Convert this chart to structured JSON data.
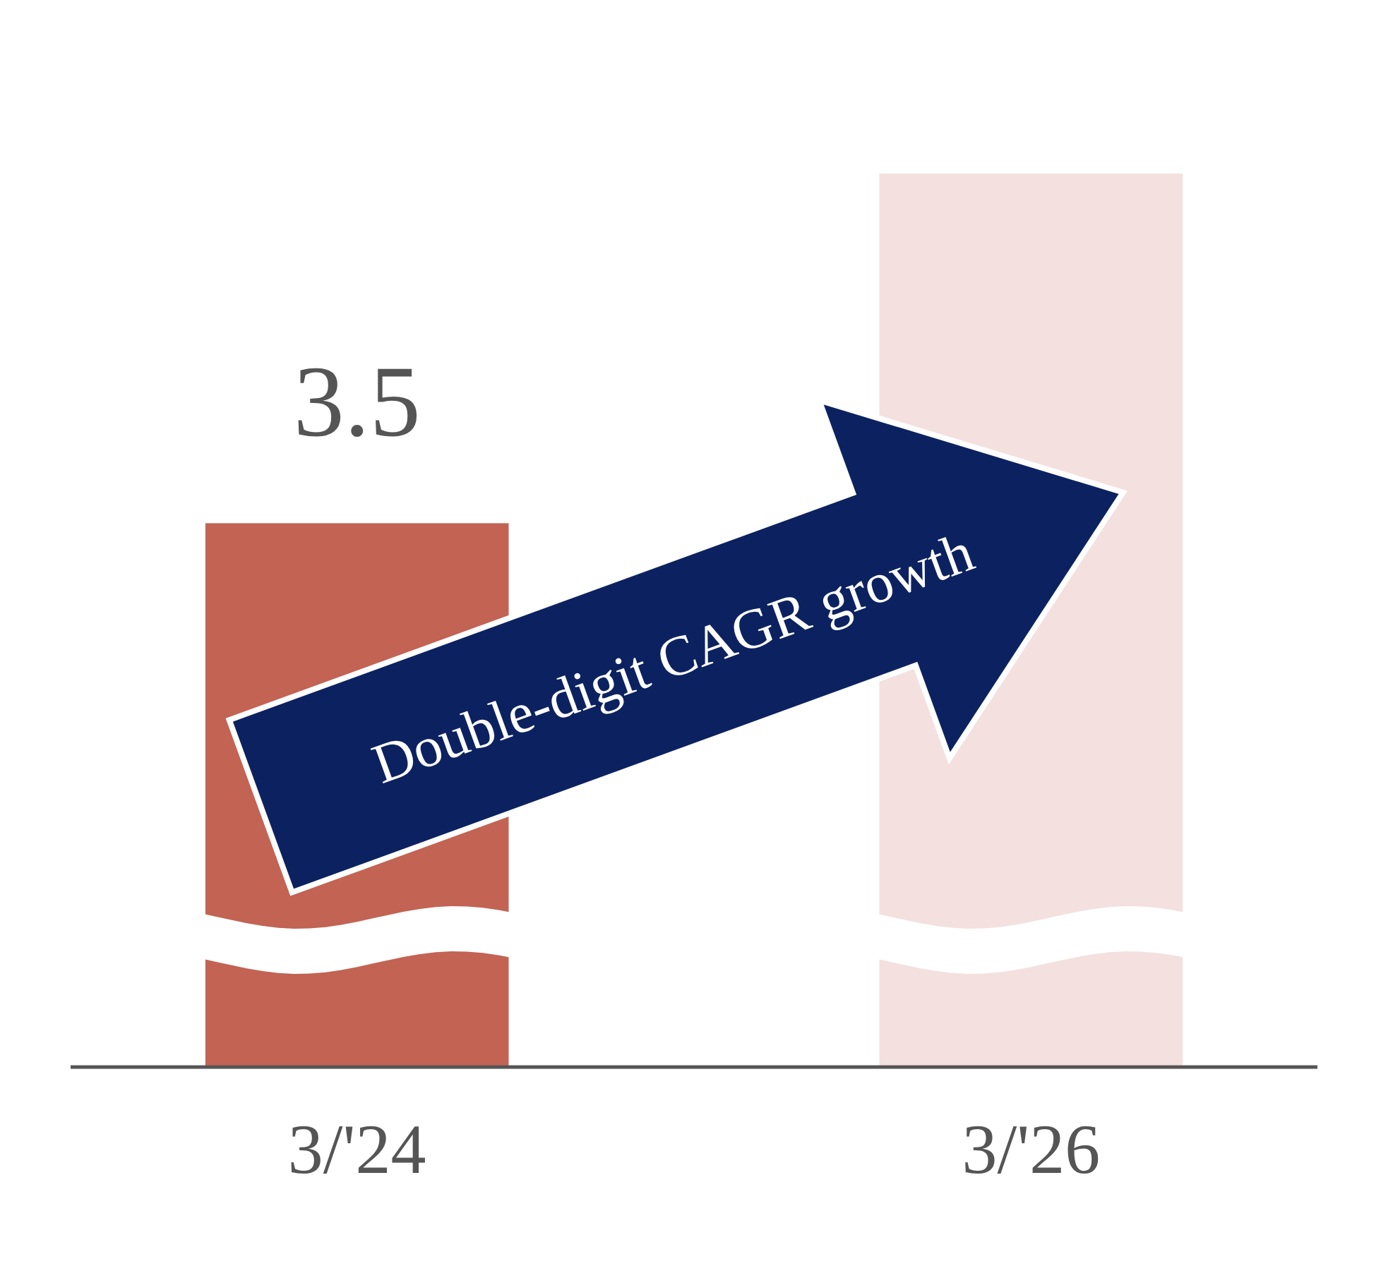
{
  "chart_data": {
    "type": "bar",
    "categories": [
      "3/'24",
      "3/'26"
    ],
    "values": [
      3.5,
      5.75
    ],
    "colors": [
      "#c26353",
      "#f4e0de"
    ],
    "value_labels": [
      "3.5",
      null
    ],
    "annotations": [
      "Double-digit CAGR growth"
    ]
  }
}
